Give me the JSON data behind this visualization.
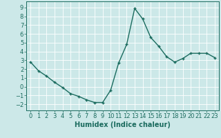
{
  "x": [
    0,
    1,
    2,
    3,
    4,
    5,
    6,
    7,
    8,
    9,
    10,
    11,
    12,
    13,
    14,
    15,
    16,
    17,
    18,
    19,
    20,
    21,
    22,
    23
  ],
  "y": [
    2.8,
    1.8,
    1.2,
    0.5,
    -0.1,
    -0.8,
    -1.1,
    -1.5,
    -1.8,
    -1.8,
    -0.4,
    2.7,
    4.8,
    8.9,
    7.7,
    5.6,
    4.6,
    3.4,
    2.8,
    3.2,
    3.8,
    3.8,
    3.8,
    3.3
  ],
  "line_color": "#1a6b5e",
  "marker": "+",
  "marker_size": 3,
  "linewidth": 1.0,
  "bg_color": "#cce8e8",
  "grid_color": "#ffffff",
  "xlabel": "Humidex (Indice chaleur)",
  "xlabel_fontsize": 7,
  "xlabel_fontweight": "bold",
  "xlim": [
    -0.5,
    23.5
  ],
  "ylim": [
    -2.7,
    9.7
  ],
  "yticks": [
    -2,
    -1,
    0,
    1,
    2,
    3,
    4,
    5,
    6,
    7,
    8,
    9
  ],
  "xticks": [
    0,
    1,
    2,
    3,
    4,
    5,
    6,
    7,
    8,
    9,
    10,
    11,
    12,
    13,
    14,
    15,
    16,
    17,
    18,
    19,
    20,
    21,
    22,
    23
  ],
  "tick_fontsize": 6,
  "tick_color": "#1a6b5e",
  "spine_color": "#1a6b5e",
  "markeredgewidth": 1.0
}
